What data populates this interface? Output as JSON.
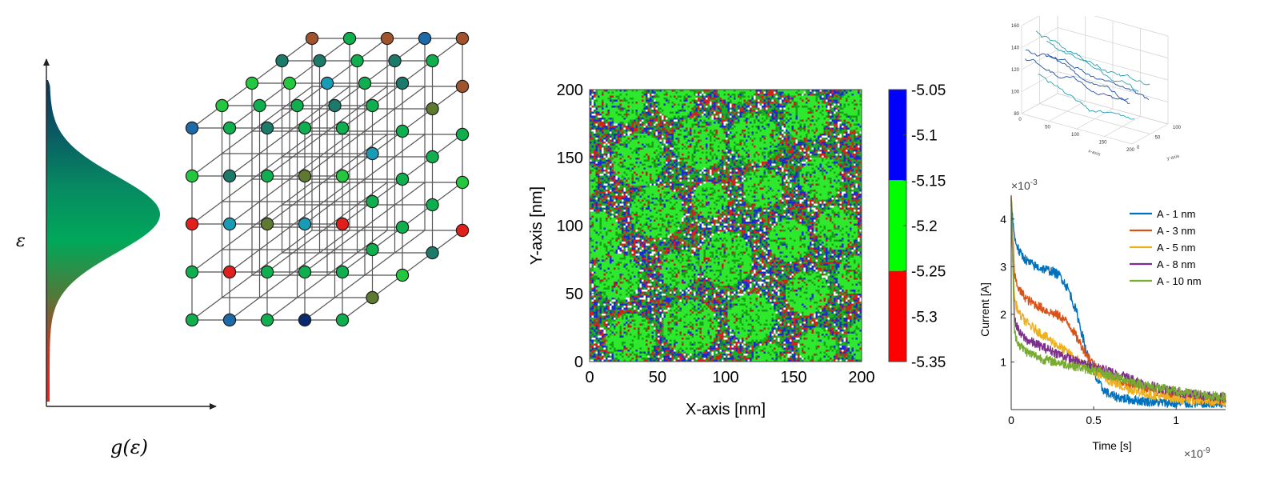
{
  "dos_panel": {
    "y_label": "ε",
    "x_label": "g(ε)",
    "gradient": [
      "#ff1a1a",
      "#c23a22",
      "#4f7a3a",
      "#00a85a",
      "#078a62",
      "#0a5a63",
      "#0b3760"
    ]
  },
  "lattice_panel": {
    "node_stroke": "#1a1a1a",
    "edge_color": "#555555",
    "node_colors": [
      "#0a2a6e",
      "#1a9bb5",
      "#0fae4e",
      "#5e7a30",
      "#a0542d",
      "#e0201c",
      "#1c7a6a",
      "#24c840",
      "#1d6aa8"
    ]
  },
  "morphology_map": {
    "xlabel": "X-axis [nm]",
    "ylabel": "Y-axis [nm]",
    "xlim": [
      0,
      200
    ],
    "ylim": [
      0,
      200
    ],
    "x_ticks": [
      "0",
      "50",
      "100",
      "150",
      "200"
    ],
    "y_ticks": [
      "0",
      "50",
      "100",
      "150",
      "200"
    ],
    "colorbar": {
      "ticks": [
        "-5.05",
        "-5.1",
        "-5.15",
        "-5.2",
        "-5.25",
        "-5.3",
        "-5.35"
      ],
      "bands": [
        {
          "color": "#0000ff",
          "from": -5.05,
          "to": -5.15
        },
        {
          "color": "#00ff00",
          "from": -5.15,
          "to": -5.25
        },
        {
          "color": "#ff0000",
          "from": -5.25,
          "to": -5.35
        }
      ]
    }
  },
  "trajectory_plot": {
    "xlabel": "x-axis",
    "ylabel": "y-axis",
    "z_ticks": [
      "160",
      "140",
      "120",
      "100",
      "80"
    ],
    "x_ticks": [
      "0",
      "50",
      "100",
      "150",
      "200"
    ],
    "y_ticks": [
      "0",
      "50",
      "100"
    ],
    "line_colors": [
      "#1f4fa0",
      "#2aa0b0"
    ]
  },
  "chart_data": {
    "type": "line",
    "xlabel": "Time [s]",
    "ylabel": "Current [A]",
    "x_exponent": "×10",
    "x_exponent_power": "-9",
    "y_exponent": "×10",
    "y_exponent_power": "-3",
    "xlim": [
      0,
      1.3
    ],
    "ylim": [
      0,
      4.5
    ],
    "x_ticks": [
      "0",
      "0.5",
      "1"
    ],
    "y_ticks": [
      "1",
      "2",
      "3",
      "4"
    ],
    "legend_position": "top-right",
    "series": [
      {
        "name": "A - 1 nm",
        "color": "#0072bd",
        "x": [
          0,
          0.02,
          0.05,
          0.1,
          0.15,
          0.2,
          0.25,
          0.3,
          0.35,
          0.4,
          0.45,
          0.5,
          0.55,
          0.6,
          0.7,
          0.8,
          0.9,
          1.0,
          1.1,
          1.2,
          1.3
        ],
        "y": [
          4.4,
          3.6,
          3.3,
          3.1,
          3.0,
          2.95,
          2.9,
          2.8,
          2.5,
          2.0,
          1.3,
          0.75,
          0.45,
          0.3,
          0.22,
          0.18,
          0.15,
          0.13,
          0.12,
          0.11,
          0.1
        ]
      },
      {
        "name": "A - 3 nm",
        "color": "#d95319",
        "x": [
          0,
          0.02,
          0.05,
          0.1,
          0.15,
          0.2,
          0.3,
          0.35,
          0.4,
          0.45,
          0.5,
          0.6,
          0.7,
          0.8,
          0.9,
          1.0,
          1.1,
          1.2,
          1.3
        ],
        "y": [
          4.4,
          2.8,
          2.5,
          2.3,
          2.2,
          2.1,
          1.95,
          1.8,
          1.5,
          1.2,
          0.95,
          0.7,
          0.55,
          0.45,
          0.38,
          0.3,
          0.25,
          0.2,
          0.17
        ]
      },
      {
        "name": "A - 5 nm",
        "color": "#edb120",
        "x": [
          0,
          0.02,
          0.05,
          0.1,
          0.2,
          0.3,
          0.4,
          0.5,
          0.6,
          0.7,
          0.8,
          0.9,
          1.0,
          1.1,
          1.2,
          1.3
        ],
        "y": [
          4.4,
          2.3,
          2.0,
          1.8,
          1.55,
          1.3,
          1.05,
          0.8,
          0.6,
          0.45,
          0.35,
          0.28,
          0.23,
          0.2,
          0.18,
          0.16
        ]
      },
      {
        "name": "A - 8 nm",
        "color": "#7e2f8e",
        "x": [
          0,
          0.02,
          0.05,
          0.1,
          0.2,
          0.3,
          0.4,
          0.5,
          0.6,
          0.7,
          0.8,
          0.9,
          1.0,
          1.1,
          1.2,
          1.3
        ],
        "y": [
          4.4,
          1.9,
          1.6,
          1.45,
          1.3,
          1.15,
          1.0,
          0.9,
          0.8,
          0.68,
          0.55,
          0.45,
          0.38,
          0.32,
          0.28,
          0.25
        ]
      },
      {
        "name": "A - 10 nm",
        "color": "#77ac30",
        "x": [
          0,
          0.02,
          0.05,
          0.1,
          0.2,
          0.3,
          0.4,
          0.5,
          0.6,
          0.7,
          0.8,
          0.9,
          1.0,
          1.1,
          1.2,
          1.3
        ],
        "y": [
          4.4,
          1.6,
          1.35,
          1.2,
          1.05,
          0.98,
          0.9,
          0.82,
          0.72,
          0.62,
          0.52,
          0.45,
          0.38,
          0.33,
          0.29,
          0.26
        ]
      }
    ]
  }
}
